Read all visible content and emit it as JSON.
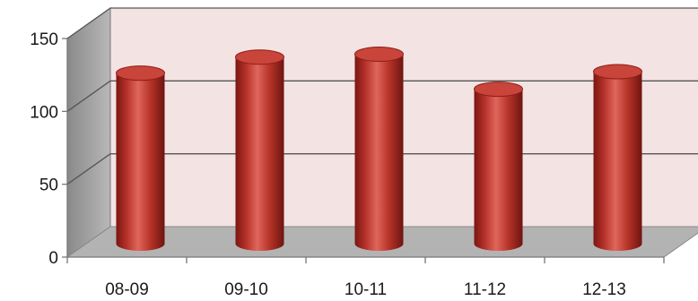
{
  "chart_data": {
    "type": "bar",
    "style": "3d-cylinder",
    "categories": [
      "08-09",
      "09-10",
      "10-11",
      "11-12",
      "12-13"
    ],
    "values": [
      117,
      128,
      130,
      106,
      118
    ],
    "title": "",
    "xlabel": "",
    "ylabel": "",
    "ylim": [
      0,
      150
    ],
    "yticks": [
      0,
      50,
      100,
      150
    ],
    "ytick_labels": [
      "0",
      "50",
      "100",
      "150"
    ],
    "grid": true,
    "legend": "none",
    "colors": {
      "bar": "#c0392b",
      "back_wall": "#f4e3e3",
      "side_wall": "#9a9a9a",
      "floor": "#b3b3b3",
      "gridline": "#555555"
    }
  }
}
